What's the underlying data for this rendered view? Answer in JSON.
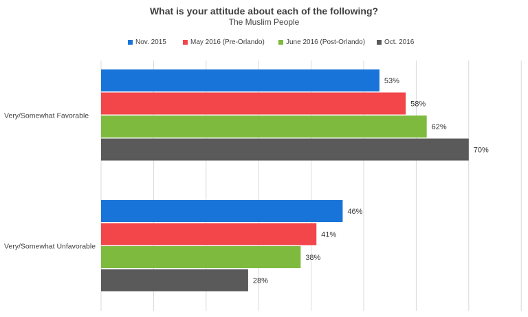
{
  "chart_data": {
    "type": "bar",
    "orientation": "horizontal",
    "title": "What is your attitude about each of the following?",
    "subtitle": "The Muslim People",
    "categories": [
      "Very/Somewhat Favorable",
      "Very/Somewhat Unfavorable"
    ],
    "series": [
      {
        "name": "Nov. 2015",
        "color": "#1874d8",
        "values": [
          53,
          46
        ]
      },
      {
        "name": "May 2016 (Pre-Orlando)",
        "color": "#f2464b",
        "values": [
          58,
          41
        ]
      },
      {
        "name": "June 2016 (Post-Orlando)",
        "color": "#7dba3e",
        "values": [
          62,
          38
        ]
      },
      {
        "name": "Oct. 2016",
        "color": "#5a5a5a",
        "values": [
          70,
          28
        ]
      }
    ],
    "value_labels": [
      [
        "53%",
        "58%",
        "62%",
        "70%"
      ],
      [
        "46%",
        "41%",
        "38%",
        "28%"
      ]
    ],
    "xlim": [
      0,
      80
    ],
    "grid": true,
    "legend_position": "top"
  }
}
